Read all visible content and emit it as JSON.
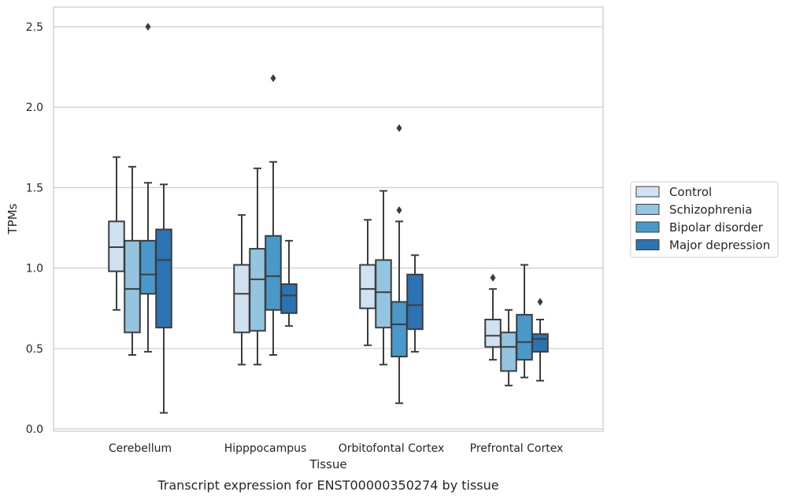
{
  "chart_data": {
    "type": "box",
    "caption": "Transcript expression for ENST00000350274 by tissue",
    "xlabel": "Tissue",
    "ylabel": "TPMs",
    "ylim": [
      0,
      2.6
    ],
    "yticks": [
      0.0,
      0.5,
      1.0,
      1.5,
      2.0,
      2.5
    ],
    "ytick_labels": [
      "0.0",
      "0.5",
      "1.0",
      "1.5",
      "2.0",
      "2.5"
    ],
    "grid": "horizontal",
    "legend_position": "right",
    "categories": [
      "Cerebellum",
      "Hipppocampus",
      "Orbitofontal Cortex",
      "Prefrontal Cortex"
    ],
    "series": [
      {
        "name": "Control",
        "color": "#d0e1f2",
        "boxes": [
          {
            "whislo": 0.74,
            "q1": 0.98,
            "med": 1.13,
            "q3": 1.29,
            "whishi": 1.69,
            "fliers": []
          },
          {
            "whislo": 0.4,
            "q1": 0.6,
            "med": 0.84,
            "q3": 1.02,
            "whishi": 1.33,
            "fliers": []
          },
          {
            "whislo": 0.52,
            "q1": 0.75,
            "med": 0.87,
            "q3": 1.02,
            "whishi": 1.3,
            "fliers": []
          },
          {
            "whislo": 0.43,
            "q1": 0.51,
            "med": 0.58,
            "q3": 0.68,
            "whishi": 0.87,
            "fliers": [
              0.94
            ]
          }
        ]
      },
      {
        "name": "Schizophrenia",
        "color": "#94c4df",
        "boxes": [
          {
            "whislo": 0.46,
            "q1": 0.6,
            "med": 0.87,
            "q3": 1.17,
            "whishi": 1.63,
            "fliers": []
          },
          {
            "whislo": 0.4,
            "q1": 0.61,
            "med": 0.93,
            "q3": 1.12,
            "whishi": 1.62,
            "fliers": []
          },
          {
            "whislo": 0.4,
            "q1": 0.63,
            "med": 0.85,
            "q3": 1.05,
            "whishi": 1.48,
            "fliers": []
          },
          {
            "whislo": 0.27,
            "q1": 0.36,
            "med": 0.51,
            "q3": 0.6,
            "whishi": 0.74,
            "fliers": []
          }
        ]
      },
      {
        "name": "Bipolar disorder",
        "color": "#4a98c9",
        "boxes": [
          {
            "whislo": 0.48,
            "q1": 0.84,
            "med": 0.96,
            "q3": 1.17,
            "whishi": 1.53,
            "fliers": [
              2.5
            ]
          },
          {
            "whislo": 0.46,
            "q1": 0.74,
            "med": 0.95,
            "q3": 1.2,
            "whishi": 1.66,
            "fliers": [
              2.18
            ]
          },
          {
            "whislo": 0.16,
            "q1": 0.45,
            "med": 0.65,
            "q3": 0.79,
            "whishi": 1.29,
            "fliers": [
              1.36,
              1.87
            ]
          },
          {
            "whislo": 0.32,
            "q1": 0.43,
            "med": 0.54,
            "q3": 0.71,
            "whishi": 1.02,
            "fliers": []
          }
        ]
      },
      {
        "name": "Major depression",
        "color": "#2c73b4",
        "boxes": [
          {
            "whislo": 0.1,
            "q1": 0.63,
            "med": 1.05,
            "q3": 1.24,
            "whishi": 1.52,
            "fliers": []
          },
          {
            "whislo": 0.64,
            "q1": 0.72,
            "med": 0.83,
            "q3": 0.9,
            "whishi": 1.17,
            "fliers": []
          },
          {
            "whislo": 0.48,
            "q1": 0.62,
            "med": 0.77,
            "q3": 0.96,
            "whishi": 1.08,
            "fliers": []
          },
          {
            "whislo": 0.3,
            "q1": 0.48,
            "med": 0.56,
            "q3": 0.59,
            "whishi": 0.68,
            "fliers": [
              0.79
            ]
          }
        ]
      }
    ]
  }
}
